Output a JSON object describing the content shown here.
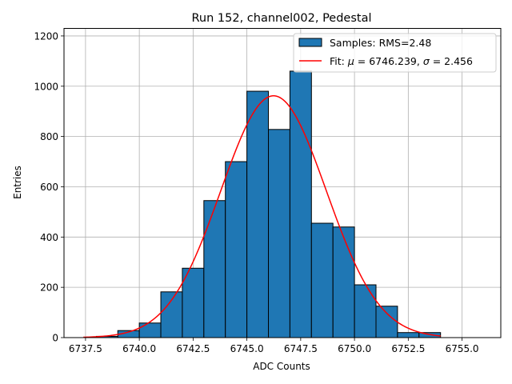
{
  "chart_data": {
    "type": "bar",
    "title": "Run 152, channel002, Pedestal",
    "xlabel": "ADC Counts",
    "ylabel": "Entries",
    "xlim": [
      6736.5,
      6756.8
    ],
    "ylim": [
      0,
      1230
    ],
    "grid": true,
    "legend_position": "top-right",
    "x_ticks": [
      6737.5,
      6740.0,
      6742.5,
      6745.0,
      6747.5,
      6750.0,
      6752.5,
      6755.0
    ],
    "x_tick_labels": [
      "6737.5",
      "6740.0",
      "6742.5",
      "6745.0",
      "6747.5",
      "6750.0",
      "6752.5",
      "6755.0"
    ],
    "y_ticks": [
      0,
      200,
      400,
      600,
      800,
      1000,
      1200
    ],
    "y_tick_labels": [
      "0",
      "200",
      "400",
      "600",
      "800",
      "1000",
      "1200"
    ],
    "bins": [
      {
        "x0": 6738.0,
        "x1": 6739.0,
        "count": 5
      },
      {
        "x0": 6739.0,
        "x1": 6740.0,
        "count": 28
      },
      {
        "x0": 6740.0,
        "x1": 6741.0,
        "count": 58
      },
      {
        "x0": 6741.0,
        "x1": 6742.0,
        "count": 182
      },
      {
        "x0": 6742.0,
        "x1": 6743.0,
        "count": 276
      },
      {
        "x0": 6743.0,
        "x1": 6744.0,
        "count": 545
      },
      {
        "x0": 6744.0,
        "x1": 6745.0,
        "count": 700
      },
      {
        "x0": 6745.0,
        "x1": 6746.0,
        "count": 980
      },
      {
        "x0": 6746.0,
        "x1": 6747.0,
        "count": 828
      },
      {
        "x0": 6747.0,
        "x1": 6748.0,
        "count": 1060
      },
      {
        "x0": 6748.0,
        "x1": 6749.0,
        "count": 455
      },
      {
        "x0": 6749.0,
        "x1": 6750.0,
        "count": 440
      },
      {
        "x0": 6750.0,
        "x1": 6751.0,
        "count": 210
      },
      {
        "x0": 6751.0,
        "x1": 6752.0,
        "count": 125
      },
      {
        "x0": 6752.0,
        "x1": 6753.0,
        "count": 20
      },
      {
        "x0": 6753.0,
        "x1": 6754.0,
        "count": 20
      }
    ],
    "fit": {
      "mu": 6746.239,
      "sigma": 2.456,
      "amplitude": 962,
      "x_range": [
        6737.4,
        6754.0
      ]
    },
    "series": [
      {
        "name": "Samples: RMS=2.48",
        "type": "bar",
        "color": "#1f77b4",
        "edge_color": "#000000"
      },
      {
        "name": "Fit: μ = 6746.239, σ = 2.456",
        "type": "line",
        "color": "#ff0000"
      }
    ],
    "legend": {
      "samples_label": "Samples: RMS=2.48",
      "fit_prefix": "Fit: ",
      "mu_symbol": "μ",
      "mu_value": " = 6746.239, ",
      "sigma_symbol": "σ",
      "sigma_value": " = 2.456"
    }
  }
}
